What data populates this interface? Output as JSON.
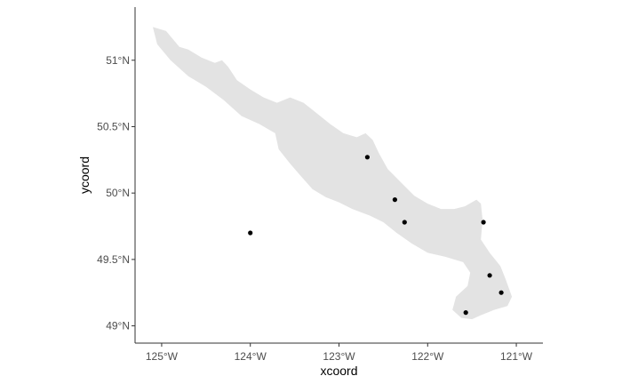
{
  "chart_data": {
    "type": "scatter",
    "xlabel": "xcoord",
    "ylabel": "ycoord",
    "xlim": [
      -125.3,
      -120.7
    ],
    "ylim": [
      48.87,
      51.4
    ],
    "x_ticks": [
      {
        "value": -125,
        "label": "125°W"
      },
      {
        "value": -124,
        "label": "124°W"
      },
      {
        "value": -123,
        "label": "123°W"
      },
      {
        "value": -122,
        "label": "122°W"
      },
      {
        "value": -121,
        "label": "121°W"
      }
    ],
    "y_ticks": [
      {
        "value": 49.0,
        "label": "49°N"
      },
      {
        "value": 49.5,
        "label": "49.5°N"
      },
      {
        "value": 50.0,
        "label": "50°N"
      },
      {
        "value": 50.5,
        "label": "50.5°N"
      },
      {
        "value": 51.0,
        "label": "51°N"
      }
    ],
    "grid": false,
    "points": [
      {
        "x": -124.0,
        "y": 49.7
      },
      {
        "x": -122.68,
        "y": 50.27
      },
      {
        "x": -122.37,
        "y": 49.95
      },
      {
        "x": -122.26,
        "y": 49.78
      },
      {
        "x": -121.37,
        "y": 49.78
      },
      {
        "x": -121.3,
        "y": 49.38
      },
      {
        "x": -121.17,
        "y": 49.25
      },
      {
        "x": -121.57,
        "y": 49.1
      }
    ],
    "background_polygon": [
      [
        -125.1,
        51.25
      ],
      [
        -124.95,
        51.22
      ],
      [
        -124.8,
        51.1
      ],
      [
        -124.7,
        51.08
      ],
      [
        -124.55,
        51.02
      ],
      [
        -124.4,
        50.98
      ],
      [
        -124.32,
        51.0
      ],
      [
        -124.25,
        50.95
      ],
      [
        -124.15,
        50.85
      ],
      [
        -124.0,
        50.78
      ],
      [
        -123.85,
        50.72
      ],
      [
        -123.7,
        50.68
      ],
      [
        -123.55,
        50.72
      ],
      [
        -123.4,
        50.68
      ],
      [
        -123.25,
        50.6
      ],
      [
        -123.1,
        50.52
      ],
      [
        -122.95,
        50.45
      ],
      [
        -122.8,
        50.42
      ],
      [
        -122.7,
        50.45
      ],
      [
        -122.62,
        50.4
      ],
      [
        -122.55,
        50.3
      ],
      [
        -122.45,
        50.18
      ],
      [
        -122.3,
        50.08
      ],
      [
        -122.15,
        49.98
      ],
      [
        -122.0,
        49.92
      ],
      [
        -121.85,
        49.88
      ],
      [
        -121.7,
        49.88
      ],
      [
        -121.58,
        49.9
      ],
      [
        -121.45,
        49.95
      ],
      [
        -121.4,
        49.92
      ],
      [
        -121.38,
        49.8
      ],
      [
        -121.4,
        49.65
      ],
      [
        -121.3,
        49.55
      ],
      [
        -121.18,
        49.45
      ],
      [
        -121.12,
        49.35
      ],
      [
        -121.05,
        49.22
      ],
      [
        -121.1,
        49.15
      ],
      [
        -121.25,
        49.12
      ],
      [
        -121.4,
        49.08
      ],
      [
        -121.5,
        49.05
      ],
      [
        -121.62,
        49.06
      ],
      [
        -121.72,
        49.12
      ],
      [
        -121.68,
        49.22
      ],
      [
        -121.55,
        49.3
      ],
      [
        -121.52,
        49.4
      ],
      [
        -121.6,
        49.48
      ],
      [
        -121.8,
        49.52
      ],
      [
        -122.0,
        49.55
      ],
      [
        -122.18,
        49.62
      ],
      [
        -122.35,
        49.7
      ],
      [
        -122.5,
        49.78
      ],
      [
        -122.65,
        49.83
      ],
      [
        -122.85,
        49.88
      ],
      [
        -123.0,
        49.93
      ],
      [
        -123.15,
        49.97
      ],
      [
        -123.3,
        50.03
      ],
      [
        -123.42,
        50.12
      ],
      [
        -123.55,
        50.22
      ],
      [
        -123.68,
        50.33
      ],
      [
        -123.72,
        50.45
      ],
      [
        -123.9,
        50.52
      ],
      [
        -124.1,
        50.58
      ],
      [
        -124.3,
        50.7
      ],
      [
        -124.5,
        50.8
      ],
      [
        -124.7,
        50.88
      ],
      [
        -124.9,
        51.0
      ],
      [
        -125.05,
        51.12
      ]
    ],
    "colors": {
      "points": "#000000",
      "land": "#e3e3e3",
      "axis": "#333333",
      "tick_text": "#4d4d4d"
    }
  }
}
